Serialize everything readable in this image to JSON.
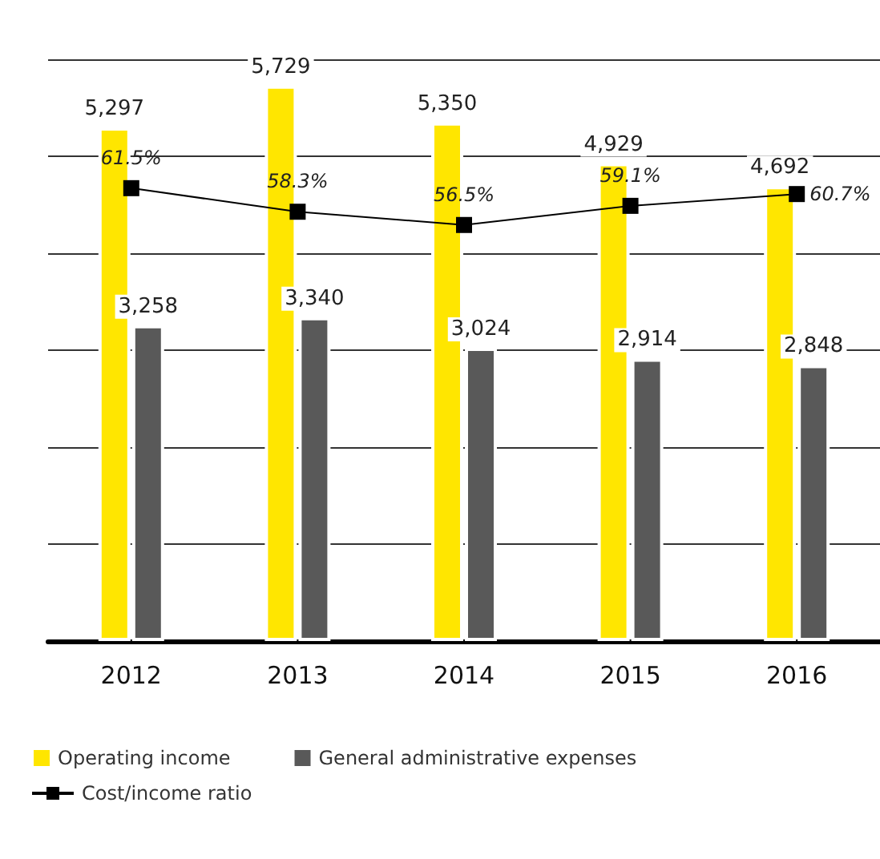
{
  "chart_data": {
    "type": "bar",
    "categories": [
      "2012",
      "2013",
      "2014",
      "2015",
      "2016"
    ],
    "series": [
      {
        "name": "Operating income",
        "color": "#ffe600",
        "values": [
          5297,
          5729,
          5350,
          4929,
          4692
        ],
        "value_labels": [
          "5,297",
          "5,729",
          "5,350",
          "4,929",
          "4,692"
        ]
      },
      {
        "name": "General administrative expenses",
        "color": "#595959",
        "values": [
          3258,
          3340,
          3024,
          2914,
          2848
        ],
        "value_labels": [
          "3,258",
          "3,340",
          "3,024",
          "2,914",
          "2,848"
        ]
      },
      {
        "name": "Cost/income ratio",
        "type": "line",
        "axis": "y2",
        "color": "#000000",
        "values": [
          61.5,
          58.3,
          56.5,
          59.1,
          60.7
        ],
        "value_labels": [
          "61.5%",
          "58.3%",
          "56.5%",
          "59.1%",
          "60.7%"
        ]
      }
    ],
    "ylim": [
      0,
      6000
    ],
    "yticks": [
      {
        "value": 0,
        "label": null
      },
      {
        "value": 1000,
        "label": null
      },
      {
        "value": 2000,
        "label": null
      },
      {
        "value": 3000,
        "label": null
      },
      {
        "value": 4000,
        "label": null
      },
      {
        "value": 5000,
        "label": null
      },
      {
        "value": 6000,
        "label": null
      }
    ],
    "y2lim": [
      0,
      79
    ],
    "tick_labels": "x",
    "grid": "y",
    "legend": "bottom left",
    "marker": "square"
  }
}
